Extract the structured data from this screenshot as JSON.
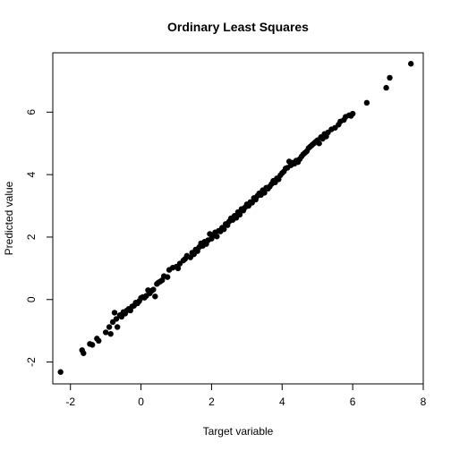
{
  "chart_data": {
    "type": "scatter",
    "title": "Ordinary Least Squares",
    "xlabel": "Target variable",
    "ylabel": "Predicted value",
    "xlim": [
      -2.5,
      8
    ],
    "ylim": [
      -2.7,
      7.9
    ],
    "x_ticks": [
      -2,
      0,
      2,
      4,
      6,
      8
    ],
    "y_ticks": [
      -2,
      0,
      2,
      4,
      6
    ],
    "grid": false,
    "marker_color": "#000000",
    "points": [
      [
        -2.28,
        -2.32
      ],
      [
        -1.67,
        -1.62
      ],
      [
        -1.63,
        -1.72
      ],
      [
        -1.45,
        -1.42
      ],
      [
        -1.38,
        -1.45
      ],
      [
        -1.25,
        -1.25
      ],
      [
        -1.2,
        -1.32
      ],
      [
        -1.0,
        -1.05
      ],
      [
        -0.9,
        -0.88
      ],
      [
        -0.86,
        -1.1
      ],
      [
        -0.8,
        -0.72
      ],
      [
        -0.75,
        -0.42
      ],
      [
        -0.7,
        -0.62
      ],
      [
        -0.67,
        -0.88
      ],
      [
        -0.6,
        -0.5
      ],
      [
        -0.55,
        -0.55
      ],
      [
        -0.5,
        -0.4
      ],
      [
        -0.45,
        -0.45
      ],
      [
        -0.4,
        -0.35
      ],
      [
        -0.35,
        -0.3
      ],
      [
        -0.3,
        -0.35
      ],
      [
        -0.25,
        -0.22
      ],
      [
        -0.2,
        -0.2
      ],
      [
        -0.15,
        -0.1
      ],
      [
        -0.1,
        -0.12
      ],
      [
        -0.05,
        -0.05
      ],
      [
        0.0,
        0.05
      ],
      [
        0.05,
        0.08
      ],
      [
        0.1,
        0.06
      ],
      [
        0.15,
        0.12
      ],
      [
        0.2,
        0.3
      ],
      [
        0.25,
        0.2
      ],
      [
        0.3,
        0.28
      ],
      [
        0.35,
        0.32
      ],
      [
        0.4,
        0.1
      ],
      [
        0.45,
        0.5
      ],
      [
        0.5,
        0.55
      ],
      [
        0.55,
        0.58
      ],
      [
        0.6,
        0.62
      ],
      [
        0.65,
        0.75
      ],
      [
        0.75,
        0.72
      ],
      [
        0.8,
        0.95
      ],
      [
        0.9,
        1.02
      ],
      [
        1.0,
        1.05
      ],
      [
        1.05,
        1.0
      ],
      [
        1.1,
        1.15
      ],
      [
        1.2,
        1.25
      ],
      [
        1.25,
        1.3
      ],
      [
        1.3,
        1.4
      ],
      [
        1.4,
        1.35
      ],
      [
        1.45,
        1.5
      ],
      [
        1.5,
        1.45
      ],
      [
        1.55,
        1.6
      ],
      [
        1.6,
        1.55
      ],
      [
        1.65,
        1.68
      ],
      [
        1.7,
        1.8
      ],
      [
        1.75,
        1.72
      ],
      [
        1.8,
        1.85
      ],
      [
        1.85,
        1.78
      ],
      [
        1.9,
        1.9
      ],
      [
        1.95,
        2.1
      ],
      [
        2.0,
        1.95
      ],
      [
        2.05,
        2.05
      ],
      [
        2.1,
        2.15
      ],
      [
        2.15,
        2.02
      ],
      [
        2.2,
        2.2
      ],
      [
        2.25,
        2.18
      ],
      [
        2.3,
        2.3
      ],
      [
        2.35,
        2.25
      ],
      [
        2.4,
        2.42
      ],
      [
        2.45,
        2.38
      ],
      [
        2.5,
        2.5
      ],
      [
        2.55,
        2.6
      ],
      [
        2.6,
        2.55
      ],
      [
        2.65,
        2.68
      ],
      [
        2.7,
        2.62
      ],
      [
        2.75,
        2.8
      ],
      [
        2.8,
        2.72
      ],
      [
        2.85,
        2.9
      ],
      [
        2.9,
        2.85
      ],
      [
        2.95,
        2.95
      ],
      [
        3.0,
        3.05
      ],
      [
        3.05,
        3.0
      ],
      [
        3.1,
        3.12
      ],
      [
        3.15,
        3.1
      ],
      [
        3.2,
        3.25
      ],
      [
        3.25,
        3.2
      ],
      [
        3.3,
        3.32
      ],
      [
        3.35,
        3.4
      ],
      [
        3.4,
        3.35
      ],
      [
        3.45,
        3.5
      ],
      [
        3.5,
        3.42
      ],
      [
        3.55,
        3.58
      ],
      [
        3.6,
        3.55
      ],
      [
        3.65,
        3.62
      ],
      [
        3.7,
        3.7
      ],
      [
        3.75,
        3.8
      ],
      [
        3.8,
        3.75
      ],
      [
        3.85,
        3.88
      ],
      [
        3.9,
        3.85
      ],
      [
        3.95,
        3.98
      ],
      [
        4.0,
        4.05
      ],
      [
        4.05,
        4.1
      ],
      [
        4.1,
        4.2
      ],
      [
        4.15,
        4.22
      ],
      [
        4.2,
        4.42
      ],
      [
        4.25,
        4.3
      ],
      [
        4.3,
        4.38
      ],
      [
        4.35,
        4.35
      ],
      [
        4.4,
        4.45
      ],
      [
        4.45,
        4.4
      ],
      [
        4.5,
        4.5
      ],
      [
        4.55,
        4.58
      ],
      [
        4.6,
        4.65
      ],
      [
        4.65,
        4.7
      ],
      [
        4.7,
        4.75
      ],
      [
        4.75,
        4.85
      ],
      [
        4.8,
        4.9
      ],
      [
        4.85,
        4.95
      ],
      [
        4.9,
        5.0
      ],
      [
        4.95,
        5.05
      ],
      [
        5.0,
        5.1
      ],
      [
        5.05,
        5.0
      ],
      [
        5.1,
        5.2
      ],
      [
        5.15,
        5.15
      ],
      [
        5.2,
        5.3
      ],
      [
        5.25,
        5.22
      ],
      [
        5.3,
        5.35
      ],
      [
        5.4,
        5.45
      ],
      [
        5.5,
        5.5
      ],
      [
        5.6,
        5.6
      ],
      [
        5.65,
        5.7
      ],
      [
        5.75,
        5.75
      ],
      [
        5.8,
        5.85
      ],
      [
        5.9,
        5.9
      ],
      [
        5.95,
        5.88
      ],
      [
        6.0,
        5.95
      ],
      [
        6.4,
        6.3
      ],
      [
        6.95,
        6.78
      ],
      [
        7.05,
        7.1
      ],
      [
        7.65,
        7.55
      ]
    ]
  }
}
